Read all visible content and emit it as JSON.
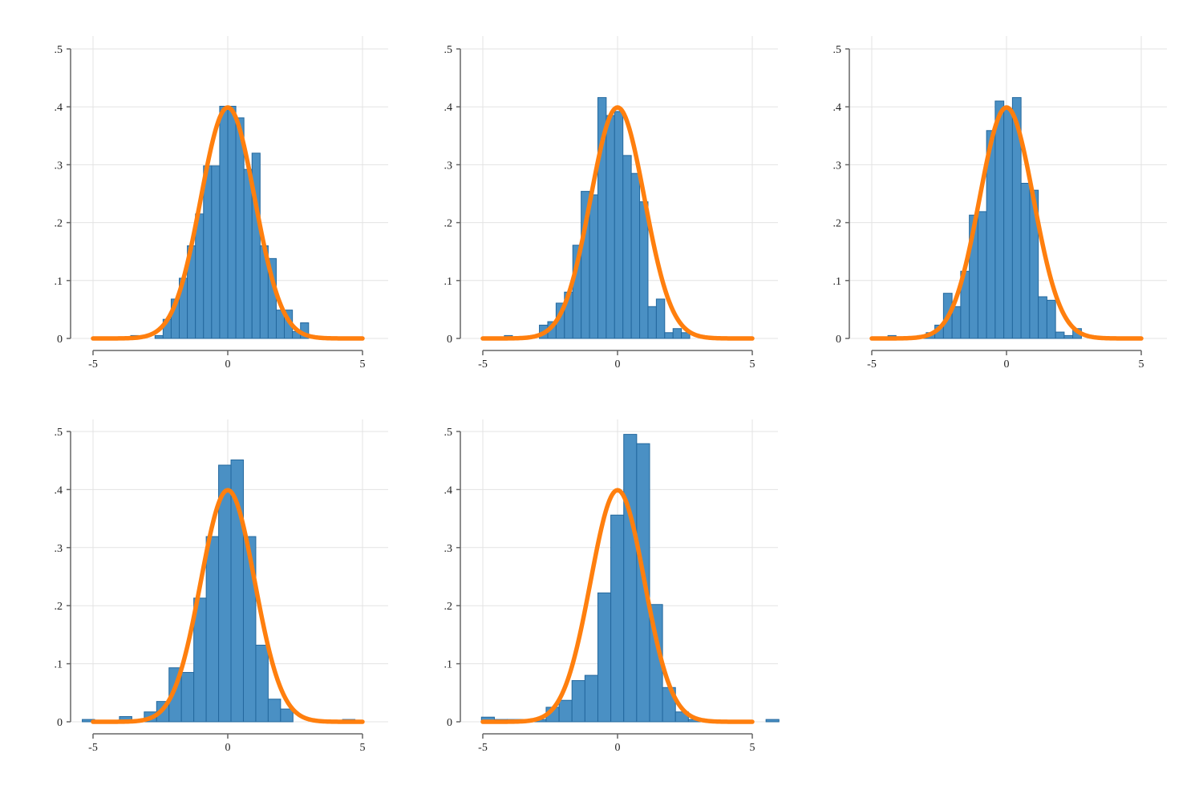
{
  "colors": {
    "bars": "#4a90c4",
    "bar_edge": "#23689e",
    "curve": "#ff7f0e",
    "grid": "#e3e3e3",
    "axis": "#666666"
  },
  "chart_data": [
    {
      "type": "bar",
      "overlay": "normal density curve",
      "xlim": [
        -5,
        5
      ],
      "ylim": [
        0,
        0.5
      ],
      "xticks": [
        "-5",
        "0",
        "5"
      ],
      "yticks": [
        "0",
        ".1",
        ".2",
        ".3",
        ".4",
        ".5"
      ],
      "bins": {
        "start": -3.6,
        "width": 0.3
      },
      "values": [
        0.005,
        0,
        0,
        0.005,
        0.033,
        0.068,
        0.104,
        0.16,
        0.215,
        0.298,
        0.298,
        0.401,
        0.401,
        0.381,
        0.292,
        0.32,
        0.16,
        0.138,
        0.049,
        0.049,
        0.012,
        0.027
      ],
      "grid": true
    },
    {
      "type": "bar",
      "overlay": "normal density curve",
      "xlim": [
        -5,
        5
      ],
      "ylim": [
        0,
        0.5
      ],
      "xticks": [
        "-5",
        "0",
        "5"
      ],
      "yticks": [
        "0",
        ".1",
        ".2",
        ".3",
        ".4",
        ".5"
      ],
      "bins": {
        "start": -2.9,
        "width": 0.31
      },
      "values": [
        0.023,
        0.029,
        0.061,
        0.08,
        0.161,
        0.254,
        0.248,
        0.416,
        0.385,
        0.392,
        0.316,
        0.285,
        0.236,
        0.055,
        0.068,
        0.01,
        0.017,
        0.01
      ],
      "extra_bars": [
        {
          "x_start": -4.2,
          "x_end": -3.9,
          "value": 0.005
        }
      ],
      "grid": true
    },
    {
      "type": "bar",
      "overlay": "normal density curve",
      "xlim": [
        -5,
        5
      ],
      "ylim": [
        0,
        0.5
      ],
      "xticks": [
        "-5",
        "0",
        "5"
      ],
      "yticks": [
        "0",
        ".1",
        ".2",
        ".3",
        ".4",
        ".5"
      ],
      "bins": {
        "start": -3.3,
        "width": 0.32
      },
      "values": [
        0.005,
        0.01,
        0.023,
        0.078,
        0.055,
        0.116,
        0.213,
        0.219,
        0.359,
        0.41,
        0.397,
        0.416,
        0.268,
        0.256,
        0.072,
        0.066,
        0.011,
        0.005,
        0.017
      ],
      "extra_bars": [
        {
          "x_start": -4.4,
          "x_end": -4.1,
          "value": 0.005
        }
      ],
      "grid": true
    },
    {
      "type": "bar",
      "overlay": "normal density curve",
      "xlim": [
        -5,
        5
      ],
      "ylim": [
        0,
        0.5
      ],
      "xticks": [
        "-5",
        "0",
        "5"
      ],
      "yticks": [
        "0",
        ".1",
        ".2",
        ".3",
        ".4",
        ".5"
      ],
      "bins": {
        "start": -5.4,
        "width": 0.46
      },
      "values": [
        0.004,
        0,
        0,
        0.009,
        0,
        0.017,
        0.035,
        0.093,
        0.085,
        0.213,
        0.319,
        0.442,
        0.451,
        0.319,
        0.132,
        0.039,
        0.022,
        0,
        0,
        0,
        0,
        0.004
      ],
      "grid": true
    },
    {
      "type": "bar",
      "overlay": "normal density curve",
      "xlim": [
        -5,
        5
      ],
      "ylim": [
        0,
        0.5
      ],
      "xticks": [
        "-5",
        "0",
        "5"
      ],
      "yticks": [
        "0",
        ".1",
        ".2",
        ".3",
        ".4",
        ".5"
      ],
      "bins": {
        "start": -5.05,
        "width": 0.48
      },
      "values": [
        0.008,
        0.004,
        0.004,
        0.004,
        0.004,
        0.025,
        0.037,
        0.071,
        0.08,
        0.222,
        0.356,
        0.495,
        0.479,
        0.202,
        0.059,
        0.017,
        0.004,
        0,
        0,
        0,
        0,
        0,
        0.004
      ],
      "grid": true
    }
  ]
}
